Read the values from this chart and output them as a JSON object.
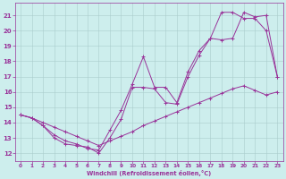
{
  "xlabel": "Windchill (Refroidissement éolien,°C)",
  "bg_color": "#cdeeed",
  "grid_color": "#aacccc",
  "line_color": "#993399",
  "xlim": [
    -0.5,
    23.5
  ],
  "ylim": [
    11.5,
    21.8
  ],
  "xticks": [
    0,
    1,
    2,
    3,
    4,
    5,
    6,
    7,
    8,
    9,
    10,
    11,
    12,
    13,
    14,
    15,
    16,
    17,
    18,
    19,
    20,
    21,
    22,
    23
  ],
  "yticks": [
    12,
    13,
    14,
    15,
    16,
    17,
    18,
    19,
    20,
    21
  ],
  "line1_x": [
    0,
    1,
    2,
    3,
    4,
    5,
    6,
    7,
    8,
    9,
    10,
    11,
    12,
    13,
    14,
    15,
    16,
    17,
    18,
    19,
    20,
    21,
    22,
    23
  ],
  "line1_y": [
    14.5,
    14.3,
    14.0,
    13.7,
    13.4,
    13.1,
    12.8,
    12.5,
    12.8,
    13.1,
    13.4,
    13.8,
    14.1,
    14.4,
    14.7,
    15.0,
    15.3,
    15.6,
    15.9,
    16.2,
    16.4,
    16.1,
    15.8,
    16.0
  ],
  "line2_x": [
    0,
    1,
    2,
    3,
    4,
    5,
    6,
    7,
    8,
    9,
    10,
    11,
    12,
    13,
    14,
    15,
    16,
    17,
    18,
    19,
    20,
    21,
    22,
    23
  ],
  "line2_y": [
    14.5,
    14.3,
    13.8,
    13.0,
    12.6,
    12.5,
    12.4,
    12.0,
    13.0,
    14.2,
    16.3,
    16.3,
    16.2,
    15.3,
    15.2,
    17.0,
    18.4,
    19.5,
    21.2,
    21.2,
    20.8,
    20.8,
    20.0,
    17.0
  ],
  "line3_x": [
    0,
    1,
    2,
    3,
    4,
    5,
    6,
    7,
    8,
    9,
    10,
    11,
    12,
    13,
    14,
    15,
    16,
    17,
    18,
    19,
    20,
    21,
    22,
    23
  ],
  "line3_y": [
    14.5,
    14.3,
    13.8,
    13.2,
    12.8,
    12.6,
    12.3,
    12.2,
    13.5,
    14.8,
    16.5,
    18.3,
    16.3,
    16.3,
    15.3,
    17.3,
    18.7,
    19.5,
    19.4,
    19.5,
    21.2,
    20.9,
    21.0,
    17.0
  ]
}
